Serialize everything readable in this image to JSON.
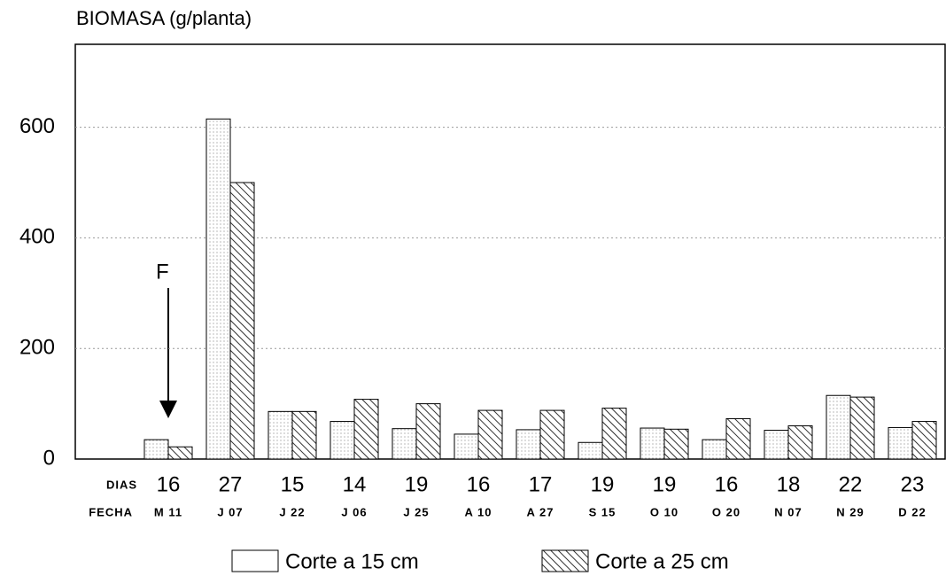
{
  "chart_data": {
    "type": "bar",
    "title": "BIOMASA (g/planta)",
    "row_labels": [
      "DIAS",
      "FECHA"
    ],
    "categories": [
      "16",
      "27",
      "15",
      "14",
      "19",
      "16",
      "17",
      "19",
      "19",
      "16",
      "18",
      "22",
      "23"
    ],
    "dates": [
      "M 11",
      "J 07",
      "J 22",
      "J 06",
      "J 25",
      "A 10",
      "A 27",
      "S 15",
      "O 10",
      "O 20",
      "N 07",
      "N 29",
      "D 22"
    ],
    "series": [
      {
        "name": "Corte a 15 cm",
        "color": "#ffffff",
        "pattern": "dots",
        "values": [
          35,
          615,
          86,
          68,
          55,
          45,
          53,
          30,
          56,
          35,
          52,
          115,
          57
        ]
      },
      {
        "name": "Corte a 25 cm",
        "color": "#ffffff",
        "pattern": "hatch",
        "values": [
          22,
          500,
          86,
          108,
          100,
          88,
          88,
          92,
          54,
          73,
          60,
          112,
          68
        ]
      }
    ],
    "annotations": [
      "F"
    ],
    "ylim": [
      0,
      750
    ],
    "yticks": [
      0,
      200,
      400,
      600
    ],
    "grid": true
  }
}
